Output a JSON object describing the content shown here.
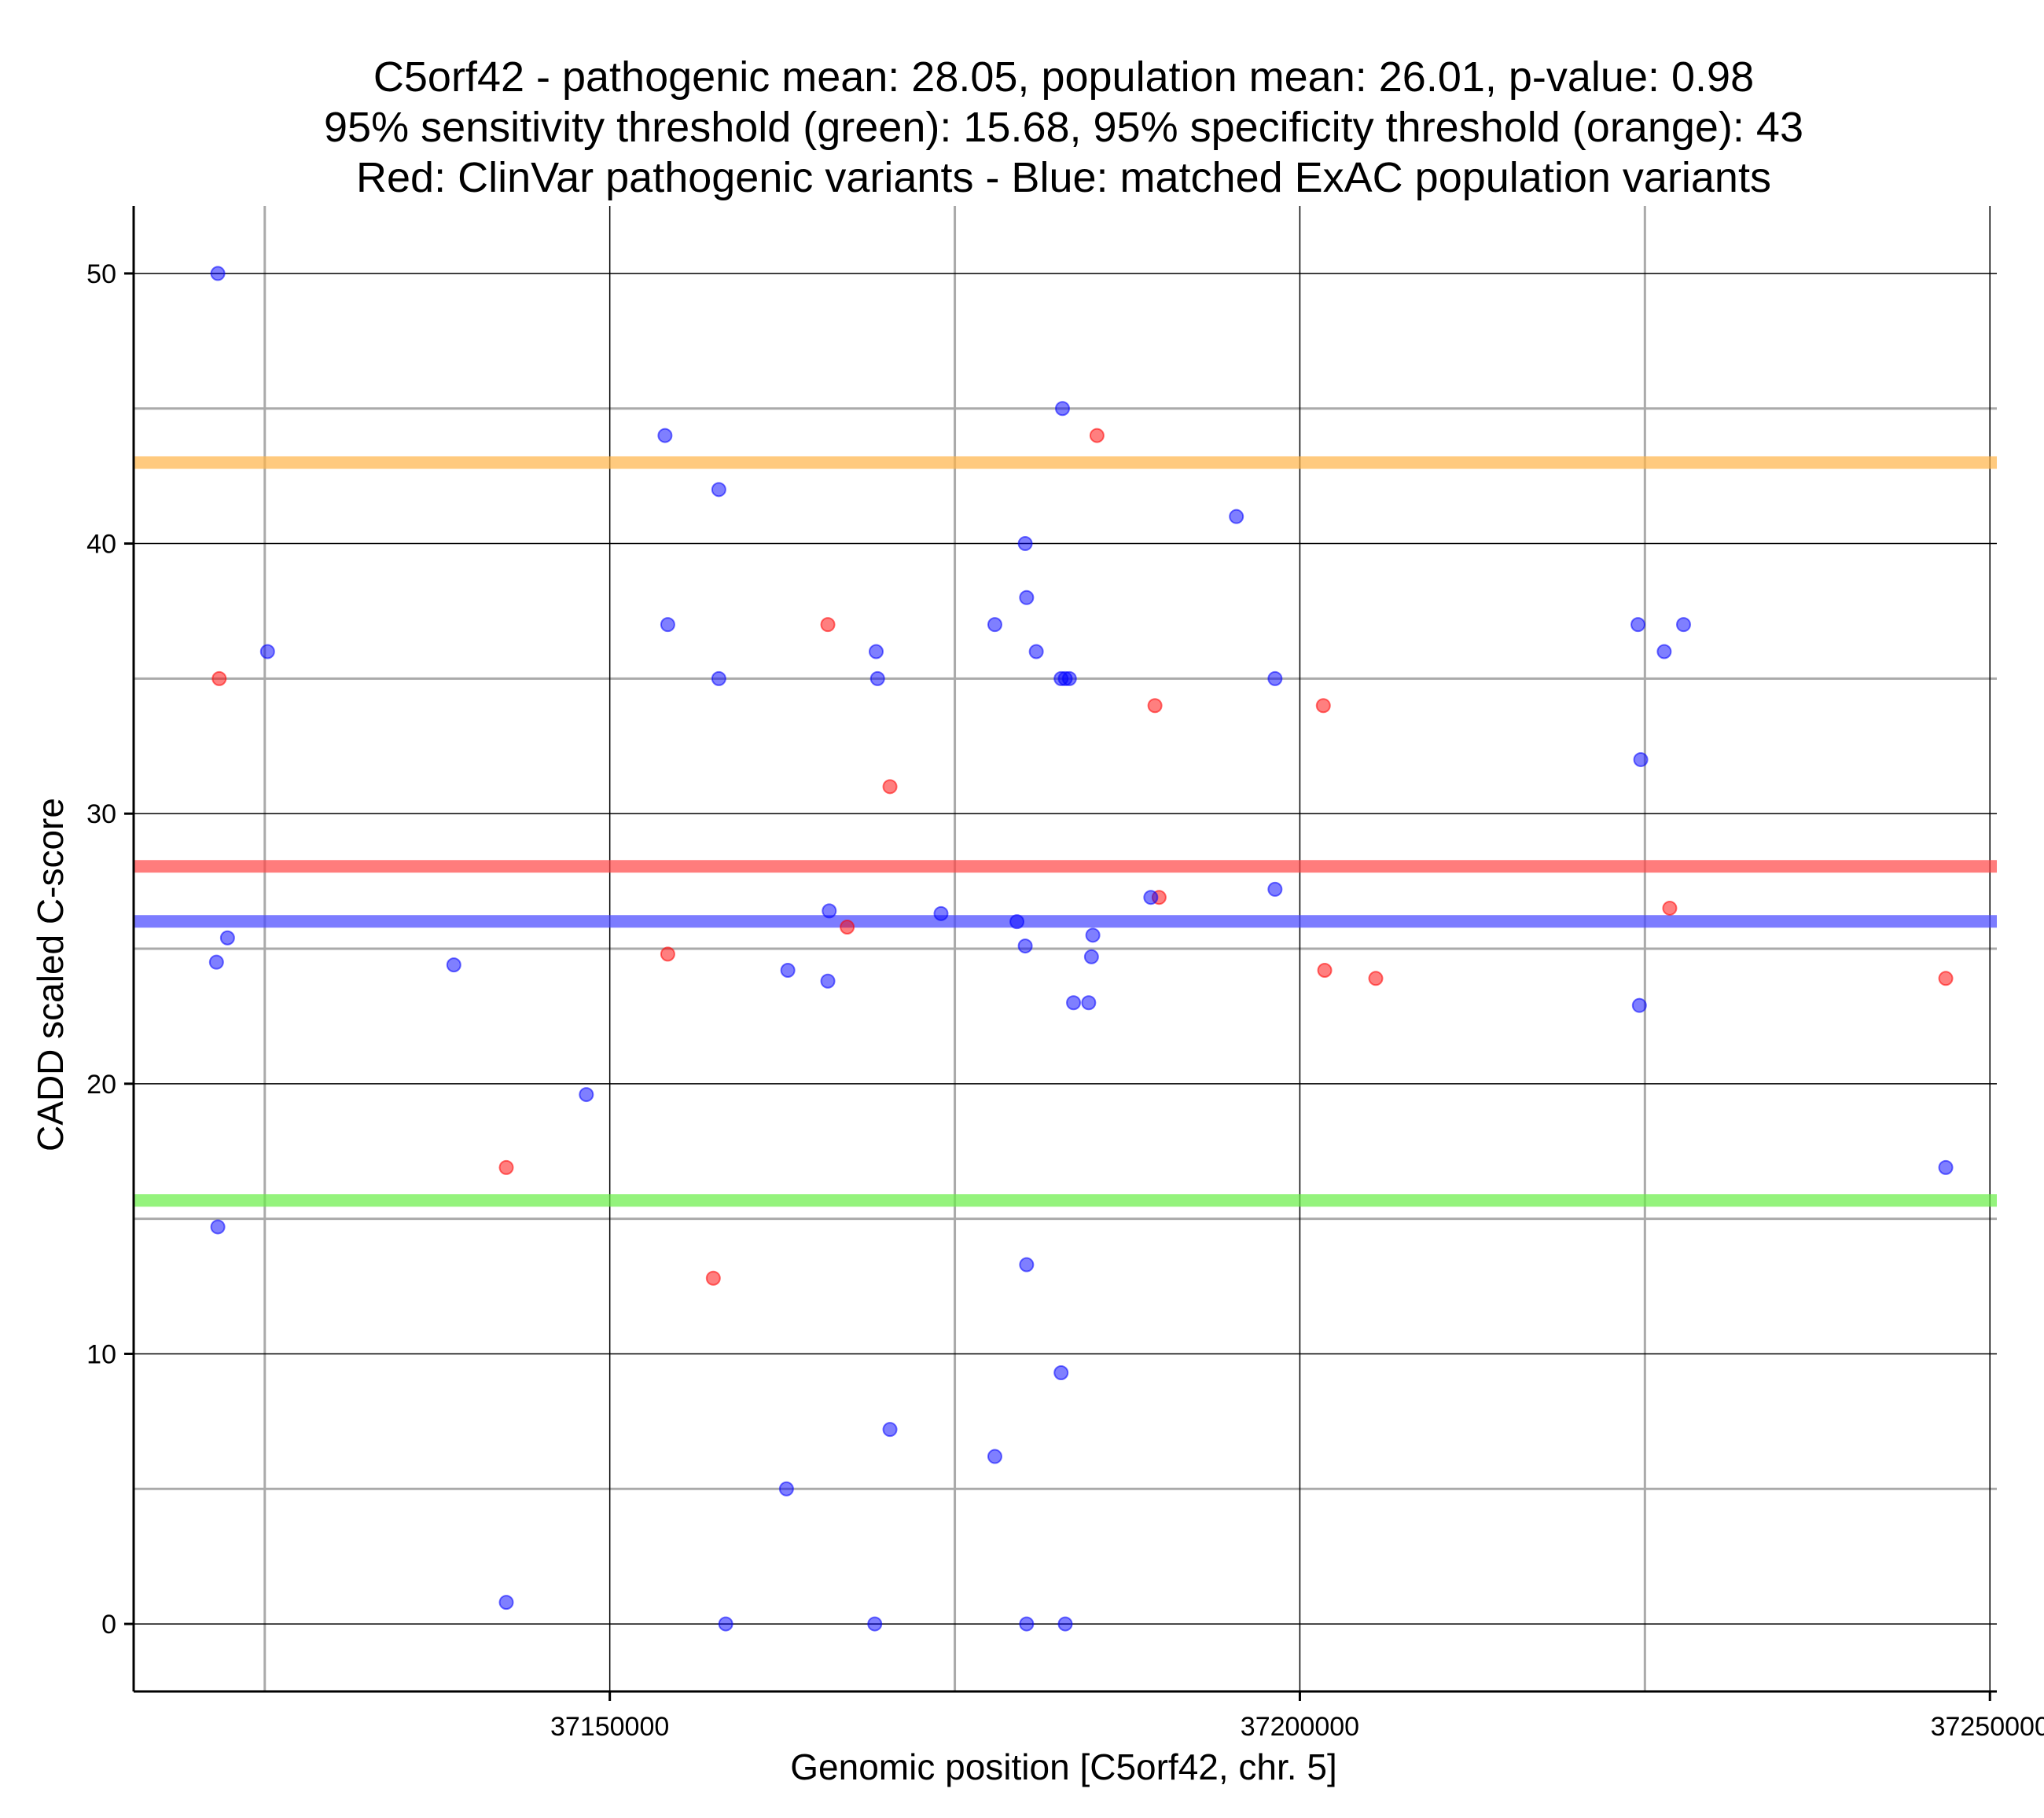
{
  "chart_data": {
    "type": "scatter",
    "title_lines": [
      "C5orf42 - pathogenic mean: 28.05, population mean: 26.01, p-value: 0.98",
      "95% sensitivity threshold (green): 15.68, 95% specificity threshold (orange): 43",
      "Red: ClinVar pathogenic variants - Blue: matched ExAC population variants"
    ],
    "xlabel": "Genomic position [C5orf42, chr. 5]",
    "ylabel": "CADD scaled C-score",
    "xlim": [
      37115500,
      37250500
    ],
    "ylim": [
      -2.5,
      52.5
    ],
    "xticks": [
      37150000,
      37200000,
      37250000
    ],
    "xtick_labels": [
      "37150000",
      "37200000",
      "37250000"
    ],
    "yticks": [
      0,
      10,
      20,
      30,
      40,
      50
    ],
    "ytick_labels": [
      "0",
      "10",
      "20",
      "30",
      "40",
      "50"
    ],
    "x_minor_gridlines": [
      37125000,
      37175000,
      37225000
    ],
    "y_minor_gridlines": [
      5,
      15,
      25,
      35,
      45
    ],
    "grid": true,
    "colors": {
      "pathogenic": "#ff0000",
      "population": "#0000ff",
      "sensitivity": "#66ee44",
      "specificity": "#ffb347",
      "pathogenic_mean": "#ff4444",
      "population_mean": "#4444ff"
    },
    "hlines": [
      {
        "name": "specificity threshold",
        "y": 43,
        "color": "#ffb347"
      },
      {
        "name": "pathogenic mean",
        "y": 28.05,
        "color": "#ff4444"
      },
      {
        "name": "population mean",
        "y": 26.01,
        "color": "#4444ff"
      },
      {
        "name": "sensitivity threshold",
        "y": 15.68,
        "color": "#66ee44"
      }
    ],
    "series": [
      {
        "color": "#ff0000",
        "points": [
          [
            37121700,
            35
          ],
          [
            37142500,
            16.9
          ],
          [
            37154200,
            24.8
          ],
          [
            37157500,
            12.8
          ],
          [
            37165800,
            37
          ],
          [
            37167200,
            25.8
          ],
          [
            37170300,
            31
          ],
          [
            37185300,
            44
          ],
          [
            37189500,
            34
          ],
          [
            37189800,
            26.9
          ],
          [
            37201700,
            34
          ],
          [
            37201800,
            24.2
          ],
          [
            37205500,
            23.9
          ],
          [
            37226800,
            26.5
          ],
          [
            37246800,
            23.9
          ]
        ]
      },
      {
        "color": "#0000ff",
        "points": [
          [
            37121600,
            50
          ],
          [
            37121500,
            24.5
          ],
          [
            37121600,
            14.7
          ],
          [
            37122300,
            25.4
          ],
          [
            37125200,
            36
          ],
          [
            37138700,
            24.4
          ],
          [
            37142500,
            0.8
          ],
          [
            37148300,
            19.6
          ],
          [
            37154000,
            44
          ],
          [
            37154200,
            37
          ],
          [
            37157900,
            42
          ],
          [
            37157900,
            35
          ],
          [
            37158400,
            0
          ],
          [
            37162900,
            24.2
          ],
          [
            37162800,
            5
          ],
          [
            37165900,
            26.4
          ],
          [
            37165800,
            23.8
          ],
          [
            37169300,
            36
          ],
          [
            37169400,
            35
          ],
          [
            37169200,
            0
          ],
          [
            37170300,
            7.2
          ],
          [
            37174000,
            26.3
          ],
          [
            37177900,
            37
          ],
          [
            37177900,
            6.2
          ],
          [
            37179500,
            26
          ],
          [
            37180100,
            40
          ],
          [
            37180200,
            38
          ],
          [
            37180100,
            25.1
          ],
          [
            37180200,
            13.3
          ],
          [
            37180200,
            0
          ],
          [
            37180900,
            36
          ],
          [
            37182800,
            45
          ],
          [
            37182700,
            35
          ],
          [
            37183000,
            35
          ],
          [
            37183300,
            35
          ],
          [
            37182700,
            9.3
          ],
          [
            37183000,
            0
          ],
          [
            37183600,
            23
          ],
          [
            37184700,
            23
          ],
          [
            37184900,
            24.7
          ],
          [
            37185000,
            25.5
          ],
          [
            37189200,
            26.9
          ],
          [
            37195400,
            41
          ],
          [
            37198200,
            35
          ],
          [
            37198200,
            27.2
          ],
          [
            37224500,
            37
          ],
          [
            37224700,
            32
          ],
          [
            37224600,
            22.9
          ],
          [
            37226400,
            36
          ],
          [
            37227800,
            37
          ],
          [
            37246800,
            16.9
          ]
        ]
      }
    ]
  }
}
